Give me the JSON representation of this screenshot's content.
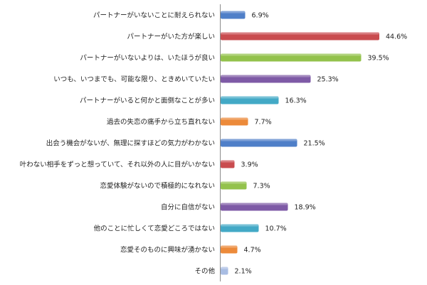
{
  "chart_data": {
    "type": "bar",
    "orientation": "horizontal",
    "unit": "%",
    "categories": [
      "パートナーがいないことに耐えられない",
      "パートナーがいた方が楽しい",
      "パートナーがいないよりは、いたほうが良い",
      "いつも、いつまでも、可能な限り、ときめいていたい",
      "パートナーがいると何かと面倒なことが多い",
      "過去の失恋の痛手から立ち直れない",
      "出会う機会がないが、無理に探すほどの気力がわかない",
      "叶わない相手をずっと想っていて、それ以外の人に目がいかない",
      "恋愛体験がないので積極的になれない",
      "自分に自信がない",
      "他のことに忙しくて恋愛どころではない",
      "恋愛そのものに興味が湧かない",
      "その他"
    ],
    "values": [
      6.9,
      44.6,
      39.5,
      25.3,
      16.3,
      7.7,
      21.5,
      3.9,
      7.3,
      18.9,
      10.7,
      4.7,
      2.1
    ],
    "value_labels": [
      "6.9%",
      "44.6%",
      "39.5%",
      "25.3%",
      "16.3%",
      "7.7%",
      "21.5%",
      "3.9%",
      "7.3%",
      "18.9%",
      "10.7%",
      "4.7%",
      "2.1%"
    ],
    "colors": [
      "#4f7fc8",
      "#c94c4f",
      "#93c24c",
      "#7e5aa6",
      "#43a9c6",
      "#ec8a3a",
      "#4f7fc8",
      "#c94c4f",
      "#93c24c",
      "#7e5aa6",
      "#43a9c6",
      "#ec8a3a",
      "#a9bde3"
    ],
    "xlim": [
      0,
      50
    ],
    "grid": false,
    "legend": "none"
  }
}
